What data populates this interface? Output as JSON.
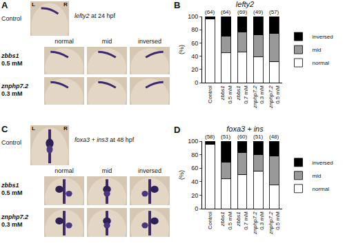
{
  "panels": [
    {
      "letter": "A",
      "control_label": "Control",
      "left": "L",
      "right": "R",
      "gene": "lefty2",
      "stage": "at 24 hpf",
      "columns": [
        "normal",
        "mid",
        "inversed"
      ],
      "rows": [
        {
          "gene": "zbbs1",
          "dose": "0.5 mM"
        },
        {
          "gene": "znphp7.2",
          "dose": "0.3 mM"
        }
      ]
    },
    {
      "letter": "C",
      "control_label": "Control",
      "left": "L",
      "right": "R",
      "gene": "foxa3 + ins3",
      "stage": "at 48 hpf",
      "columns": [
        "normal",
        "mid",
        "inversed"
      ],
      "rows": [
        {
          "gene": "zbbs1",
          "dose": "0.5 mM"
        },
        {
          "gene": "znphp7.2",
          "dose": "0.3 mM"
        }
      ]
    }
  ],
  "chart_data": [
    {
      "panel": "B",
      "type": "bar",
      "stacked": true,
      "title": "lefty2",
      "y_label": "(%)",
      "categories": [
        "Control",
        "zbbs1 0.5 mM",
        "zbbs1 0.7 mM",
        "znphp7.2 0.3 mM",
        "znphp7.2 0.5 mM"
      ],
      "series": [
        {
          "name": "normal",
          "color": "#ffffff",
          "values": [
            96,
            45,
            46,
            39,
            32
          ]
        },
        {
          "name": "mid",
          "color": "#999999",
          "values": [
            0,
            25,
            31,
            33,
            42
          ]
        },
        {
          "name": "inversed",
          "color": "#000000",
          "values": [
            4,
            30,
            23,
            28,
            26
          ]
        }
      ],
      "annotations": [
        "(64)",
        "(64)",
        "(69)",
        "(49)",
        "(57)"
      ],
      "ylim": [
        0,
        100
      ],
      "yticks": [
        0,
        20,
        40,
        60,
        80,
        100
      ],
      "legend": "right"
    },
    {
      "panel": "D",
      "type": "bar",
      "stacked": true,
      "title": "foxa3 + ins",
      "y_label": "(%)",
      "categories": [
        "Control",
        "zbbs1 0.5 mM",
        "zbbs1 0.7 mM",
        "znphp7.2 0.3 mM",
        "znphp7.2 0.5 mM"
      ],
      "series": [
        {
          "name": "normal",
          "color": "#ffffff",
          "values": [
            95,
            44,
            51,
            56,
            35
          ]
        },
        {
          "name": "mid",
          "color": "#999999",
          "values": [
            0,
            25,
            32,
            24,
            43
          ]
        },
        {
          "name": "inversed",
          "color": "#000000",
          "values": [
            5,
            31,
            17,
            20,
            22
          ]
        }
      ],
      "annotations": [
        "(58)",
        "(51)",
        "(60)",
        "(51)",
        "(48)"
      ],
      "ylim": [
        0,
        100
      ],
      "yticks": [
        0,
        20,
        40,
        60,
        80,
        100
      ],
      "legend": "right"
    }
  ]
}
